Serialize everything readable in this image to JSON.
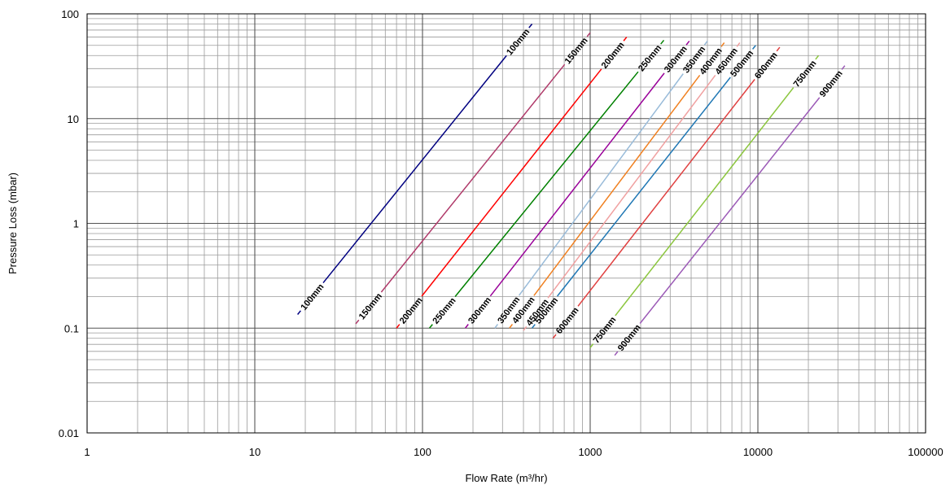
{
  "chart_data": {
    "type": "line",
    "xlabel": "Flow Rate (m³/hr)",
    "ylabel": "Pressure Loss (mbar)",
    "x_scale": "log",
    "y_scale": "log",
    "xlim": [
      1,
      100000
    ],
    "ylim": [
      0.01,
      100
    ],
    "x_ticks": [
      "1",
      "10",
      "100",
      "1000",
      "10000",
      "100000"
    ],
    "y_ticks": [
      "0.01",
      "0.1",
      "1",
      "10",
      "100"
    ],
    "grid": true,
    "series": [
      {
        "name": "100mm",
        "color": "#000080",
        "points": [
          [
            18,
            0.135
          ],
          [
            450,
            80
          ]
        ]
      },
      {
        "name": "150mm",
        "color": "#b03a6a",
        "points": [
          [
            40,
            0.11
          ],
          [
            1000,
            66
          ]
        ]
      },
      {
        "name": "200mm",
        "color": "#ff0000",
        "points": [
          [
            70,
            0.1
          ],
          [
            1650,
            60
          ]
        ]
      },
      {
        "name": "250mm",
        "color": "#008000",
        "points": [
          [
            110,
            0.1
          ],
          [
            2750,
            56
          ]
        ]
      },
      {
        "name": "300mm",
        "color": "#990099",
        "points": [
          [
            180,
            0.1
          ],
          [
            3900,
            55
          ]
        ]
      },
      {
        "name": "350mm",
        "color": "#99bbd9",
        "points": [
          [
            270,
            0.1
          ],
          [
            5000,
            55
          ]
        ]
      },
      {
        "name": "400mm",
        "color": "#f08020",
        "points": [
          [
            330,
            0.1
          ],
          [
            6300,
            53
          ]
        ]
      },
      {
        "name": "450mm",
        "color": "#f0a0a0",
        "points": [
          [
            400,
            0.095
          ],
          [
            7800,
            53
          ]
        ]
      },
      {
        "name": "500mm",
        "color": "#1f77b4",
        "points": [
          [
            450,
            0.1
          ],
          [
            9700,
            50
          ]
        ]
      },
      {
        "name": "600mm",
        "color": "#e04040",
        "points": [
          [
            600,
            0.08
          ],
          [
            13500,
            48
          ]
        ]
      },
      {
        "name": "750mm",
        "color": "#8cc63f",
        "points": [
          [
            1000,
            0.065
          ],
          [
            23000,
            40
          ]
        ]
      },
      {
        "name": "900mm",
        "color": "#9b59b6",
        "points": [
          [
            1400,
            0.055
          ],
          [
            33000,
            32
          ]
        ]
      }
    ]
  }
}
